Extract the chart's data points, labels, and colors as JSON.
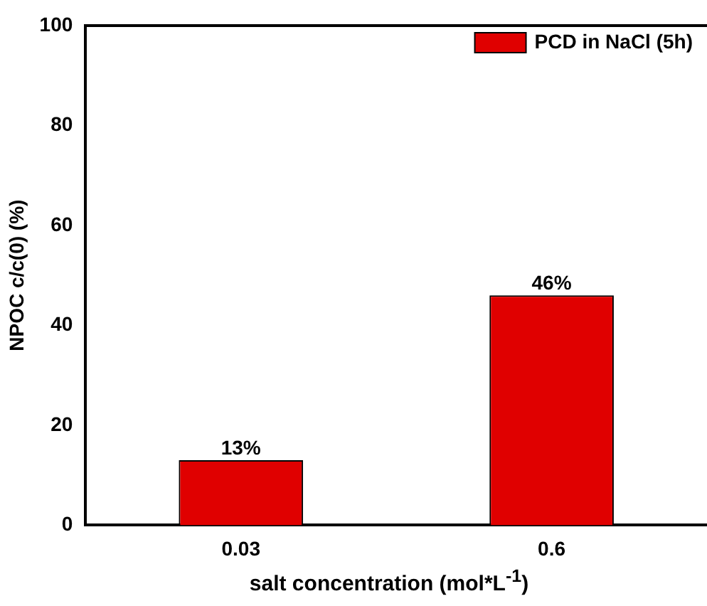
{
  "chart_data": {
    "type": "bar",
    "categories": [
      "0.03",
      "0.6"
    ],
    "series": [
      {
        "name": "PCD in NaCl (5h)",
        "color": "#e00000",
        "values": [
          13,
          46
        ],
        "value_labels": [
          "13%",
          "46%"
        ]
      }
    ],
    "xlabel": "salt concentration (mol*L$^{-1}$)",
    "ylabel": "NPOC c/c(0) (%)",
    "ylim": [
      0,
      100
    ],
    "yticks": [
      0,
      20,
      40,
      60,
      80,
      100
    ],
    "grid": false,
    "legend": "top right"
  }
}
